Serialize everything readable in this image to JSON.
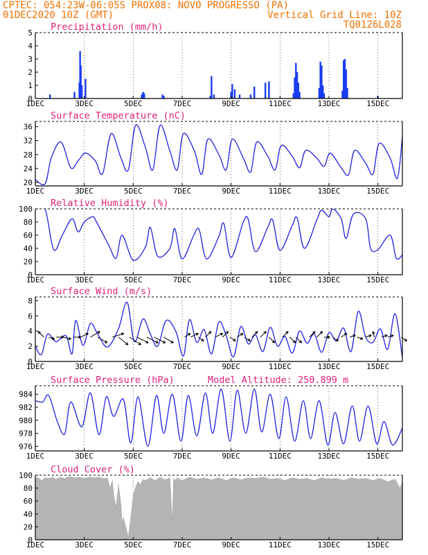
{
  "header": {
    "line1_left": "CPTEC:  054:23W-06:05S  PROX08: NOVO PROGRESSO (PA)",
    "line2_left": "01DEC2020 10Z (GMT)",
    "line2_right": "Vertical Grid Line: 10Z",
    "line3_right": "TQ0126L028"
  },
  "x_axis": {
    "ticks": [
      "1DEC",
      "3DEC",
      "5DEC",
      "7DEC",
      "9DEC",
      "11DEC",
      "13DEC",
      "15DEC"
    ],
    "tick_days": [
      1,
      3,
      5,
      7,
      9,
      11,
      13,
      15
    ],
    "range_days": [
      1,
      16
    ]
  },
  "colors": {
    "line": "#2020e0",
    "bar": "#1a3cf0",
    "title": "#e0207a",
    "header": "#f07000",
    "cloud": "#b4b4b4"
  },
  "chart_data": [
    {
      "type": "bar",
      "title": "Precipitation (mm/h)",
      "ylim": [
        0,
        5
      ],
      "yticks": [
        0,
        1,
        2,
        3,
        4,
        5
      ],
      "x": [
        1.6,
        2.6,
        2.8,
        2.83,
        2.86,
        2.9,
        3.05,
        5.35,
        5.4,
        5.45,
        6.2,
        6.25,
        8.15,
        8.2,
        8.3,
        9.0,
        9.05,
        9.15,
        9.35,
        9.8,
        9.95,
        10.4,
        10.55,
        11.55,
        11.6,
        11.65,
        11.7,
        11.75,
        11.8,
        12.6,
        12.65,
        12.7,
        12.75,
        12.8,
        13.55,
        13.6,
        13.65,
        13.7,
        13.75,
        15.0
      ],
      "values": [
        0.3,
        0.5,
        1.2,
        3.6,
        2.5,
        1.0,
        1.5,
        0.3,
        0.5,
        0.4,
        0.3,
        0.2,
        0.2,
        1.7,
        0.3,
        0.5,
        1.1,
        0.7,
        0.3,
        0.3,
        0.9,
        1.2,
        1.3,
        0.4,
        1.6,
        2.7,
        2.0,
        1.2,
        0.5,
        0.8,
        2.8,
        2.5,
        1.0,
        0.4,
        0.6,
        2.9,
        3.0,
        2.2,
        0.8,
        0.2
      ]
    },
    {
      "type": "line",
      "title": "Surface Temperature (nC)",
      "ylim": [
        19,
        37.5
      ],
      "yticks": [
        20,
        24,
        28,
        32,
        36
      ],
      "x": [
        1.0,
        1.4,
        1.65,
        2.05,
        2.45,
        2.75,
        3.05,
        3.45,
        3.75,
        4.1,
        4.5,
        4.8,
        5.1,
        5.5,
        5.8,
        6.1,
        6.5,
        6.8,
        7.05,
        7.5,
        7.8,
        8.05,
        8.5,
        8.8,
        9.05,
        9.5,
        9.8,
        10.05,
        10.5,
        10.8,
        11.05,
        11.5,
        11.8,
        12.05,
        12.5,
        12.8,
        13.05,
        13.5,
        13.8,
        14.05,
        14.5,
        14.8,
        15.05,
        15.5,
        15.8,
        16.0
      ],
      "values": [
        20.8,
        19.6,
        27.0,
        31.6,
        24.2,
        26.2,
        28.4,
        26.2,
        22.5,
        34.0,
        27.0,
        23.6,
        36.4,
        30.0,
        23.6,
        36.4,
        29.0,
        23.6,
        34.0,
        29.0,
        22.3,
        32.4,
        28.0,
        23.6,
        32.4,
        27.0,
        23.0,
        31.6,
        27.5,
        23.6,
        30.6,
        27.5,
        24.2,
        29.2,
        27.0,
        24.6,
        28.4,
        24.2,
        22.2,
        29.2,
        25.5,
        22.4,
        31.2,
        27.0,
        21.2,
        33.2
      ]
    },
    {
      "type": "line",
      "title": "Relative Humidity (%)",
      "ylim": [
        0,
        100
      ],
      "yticks": [
        0,
        20,
        40,
        60,
        80,
        100
      ],
      "x": [
        1.0,
        1.4,
        1.75,
        2.1,
        2.5,
        2.75,
        3.0,
        3.35,
        3.5,
        4.0,
        4.3,
        4.55,
        5.0,
        5.5,
        5.7,
        6.0,
        6.5,
        6.7,
        7.0,
        7.5,
        7.7,
        8.0,
        8.5,
        8.7,
        9.0,
        9.5,
        9.7,
        10.0,
        10.5,
        10.7,
        11.0,
        11.5,
        11.7,
        12.0,
        12.5,
        12.7,
        13.0,
        13.15,
        13.5,
        13.7,
        14.0,
        14.5,
        14.7,
        15.0,
        15.5,
        15.75,
        16.0
      ],
      "values": [
        100,
        100,
        38,
        60,
        85,
        65,
        80,
        88,
        80,
        45,
        25,
        60,
        22,
        42,
        72,
        28,
        40,
        70,
        24,
        62,
        68,
        24,
        58,
        78,
        26,
        80,
        84,
        35,
        72,
        83,
        37,
        75,
        86,
        40,
        83,
        98,
        88,
        100,
        85,
        55,
        92,
        85,
        40,
        38,
        60,
        25,
        30
      ]
    },
    {
      "type": "line",
      "title": "Surface Wind (m/s)",
      "ylim": [
        0,
        8.5
      ],
      "yticks": [
        0,
        2,
        4,
        6,
        8
      ],
      "x": [
        1.0,
        1.25,
        1.5,
        1.85,
        2.25,
        2.5,
        2.65,
        2.95,
        3.25,
        3.55,
        3.95,
        4.4,
        4.75,
        5.05,
        5.4,
        5.7,
        6.0,
        6.35,
        6.75,
        7.05,
        7.3,
        7.6,
        7.9,
        8.2,
        8.5,
        8.8,
        9.1,
        9.4,
        9.7,
        10.0,
        10.3,
        10.6,
        10.9,
        11.2,
        11.5,
        11.8,
        12.1,
        12.4,
        12.7,
        13.0,
        13.3,
        13.6,
        13.9,
        14.2,
        14.5,
        14.8,
        15.1,
        15.4,
        15.7,
        16.0
      ],
      "values": [
        2.0,
        0.9,
        3.6,
        2.6,
        3.4,
        1.0,
        5.4,
        2.1,
        5.0,
        3.6,
        1.9,
        4.3,
        7.8,
        2.6,
        5.6,
        3.6,
        2.0,
        5.4,
        3.9,
        0.7,
        5.5,
        2.5,
        4.2,
        1.0,
        5.2,
        3.4,
        0.6,
        4.6,
        2.3,
        3.5,
        1.3,
        4.5,
        2.0,
        3.3,
        1.1,
        4.0,
        2.4,
        3.6,
        1.2,
        3.8,
        2.7,
        4.4,
        1.3,
        6.6,
        3.2,
        2.5,
        4.3,
        1.6,
        6.3,
        0.5
      ],
      "vectors": {
        "x": [
          1.35,
          1.55,
          1.85,
          2.15,
          2.55,
          2.85,
          3.25,
          3.55,
          4.15,
          4.4,
          4.85,
          5.15,
          5.55,
          5.85,
          6.25,
          7.1,
          7.35,
          7.65,
          7.95,
          8.35,
          8.65,
          8.95,
          9.25,
          9.55,
          9.85,
          10.2,
          10.55,
          11.1,
          11.4,
          11.65,
          12.2,
          12.5,
          12.8,
          13.15,
          13.5,
          13.85,
          14.15,
          14.5,
          14.85,
          15.15,
          15.4,
          15.95
        ],
        "u": [
          -1.5,
          1.5,
          2,
          2,
          2,
          2,
          2.5,
          2.5,
          3,
          2.5,
          3,
          3,
          3,
          3,
          2.5,
          1.5,
          2,
          1.5,
          1.5,
          2,
          1.5,
          1.5,
          1.5,
          1.5,
          1.5,
          1.5,
          1.5,
          1.5,
          1.5,
          1.5,
          1.5,
          1.5,
          1.5,
          1.5,
          1.5,
          1.5,
          1.5,
          1.5,
          -0.3,
          1.5,
          1.5,
          1.5
        ],
        "v": [
          1.5,
          -0.5,
          0,
          -0.5,
          0,
          1,
          1.5,
          -1.5,
          1,
          -2,
          -2,
          -1.5,
          -1.5,
          -1.5,
          -1.5,
          1,
          1,
          -1,
          1.5,
          1,
          1.5,
          -1,
          1,
          -1,
          1.5,
          1.5,
          -1.5,
          1.5,
          -1.5,
          -1.5,
          1.5,
          1.5,
          0,
          -1,
          1,
          0.5,
          -0.5,
          0.5,
          1.5,
          0.5,
          0.5,
          -1
        ]
      }
    },
    {
      "type": "line",
      "title": "Surface Pressure (hPa)",
      "annotation": "Model Altitude: 250.899 m",
      "ylim": [
        975.3,
        985.3
      ],
      "yticks": [
        976,
        978,
        980,
        982,
        984
      ],
      "x": [
        1.0,
        1.3,
        1.55,
        1.9,
        2.2,
        2.45,
        2.9,
        3.25,
        3.6,
        3.9,
        4.2,
        4.6,
        4.9,
        5.2,
        5.6,
        5.95,
        6.25,
        6.6,
        6.95,
        7.25,
        7.6,
        7.95,
        8.25,
        8.6,
        8.95,
        9.25,
        9.6,
        9.95,
        10.25,
        10.6,
        10.95,
        11.25,
        11.6,
        11.95,
        12.25,
        12.6,
        12.95,
        13.25,
        13.6,
        13.95,
        14.25,
        14.6,
        14.95,
        15.25,
        15.6,
        16.0
      ],
      "values": [
        983.0,
        982.8,
        983.8,
        979.8,
        977.9,
        982.8,
        979.0,
        984.2,
        977.8,
        983.6,
        980.6,
        983.2,
        976.5,
        983.6,
        976.0,
        983.8,
        978.0,
        984.0,
        976.8,
        983.8,
        977.6,
        984.2,
        978.0,
        984.8,
        976.8,
        984.6,
        978.0,
        984.8,
        978.2,
        984.0,
        977.2,
        983.6,
        976.8,
        983.0,
        977.2,
        983.0,
        976.2,
        981.2,
        976.4,
        982.2,
        976.8,
        982.2,
        976.4,
        979.8,
        976.2,
        978.8
      ]
    },
    {
      "type": "area",
      "title": "Cloud Cover (%)",
      "ylim": [
        0,
        100
      ],
      "yticks": [
        0,
        20,
        40,
        60,
        80,
        100
      ],
      "x": [
        1.0,
        1.1,
        1.25,
        1.4,
        1.55,
        1.7,
        1.85,
        2.0,
        2.2,
        2.4,
        2.6,
        2.8,
        3.0,
        3.2,
        3.4,
        3.6,
        3.8,
        3.95,
        4.05,
        4.15,
        4.2,
        4.3,
        4.4,
        4.5,
        4.55,
        4.6,
        4.7,
        4.8,
        4.9,
        5.0,
        5.1,
        5.2,
        5.3,
        5.4,
        5.5,
        5.7,
        5.9,
        6.1,
        6.3,
        6.5,
        6.6,
        6.65,
        6.7,
        6.8,
        7.0,
        7.3,
        7.6,
        7.9,
        8.2,
        8.5,
        8.8,
        9.1,
        9.4,
        9.7,
        10.0,
        10.3,
        10.6,
        10.9,
        11.2,
        11.5,
        11.8,
        12.1,
        12.4,
        12.7,
        13.0,
        13.3,
        13.6,
        13.9,
        14.2,
        14.5,
        14.8,
        15.1,
        15.4,
        15.7,
        15.9,
        16.0
      ],
      "values": [
        94,
        97,
        92,
        96,
        95,
        97,
        94,
        97,
        95,
        98,
        96,
        97,
        95,
        97,
        96,
        97,
        95,
        96,
        80,
        92,
        70,
        50,
        86,
        55,
        25,
        35,
        20,
        4,
        35,
        68,
        82,
        90,
        86,
        94,
        92,
        96,
        92,
        97,
        93,
        96,
        30,
        96,
        92,
        96,
        92,
        97,
        94,
        96,
        93,
        96,
        92,
        96,
        93,
        96,
        95,
        97,
        94,
        95,
        92,
        96,
        94,
        95,
        92,
        96,
        94,
        95,
        92,
        96,
        94,
        95,
        92,
        95,
        90,
        94,
        80,
        90
      ]
    }
  ]
}
